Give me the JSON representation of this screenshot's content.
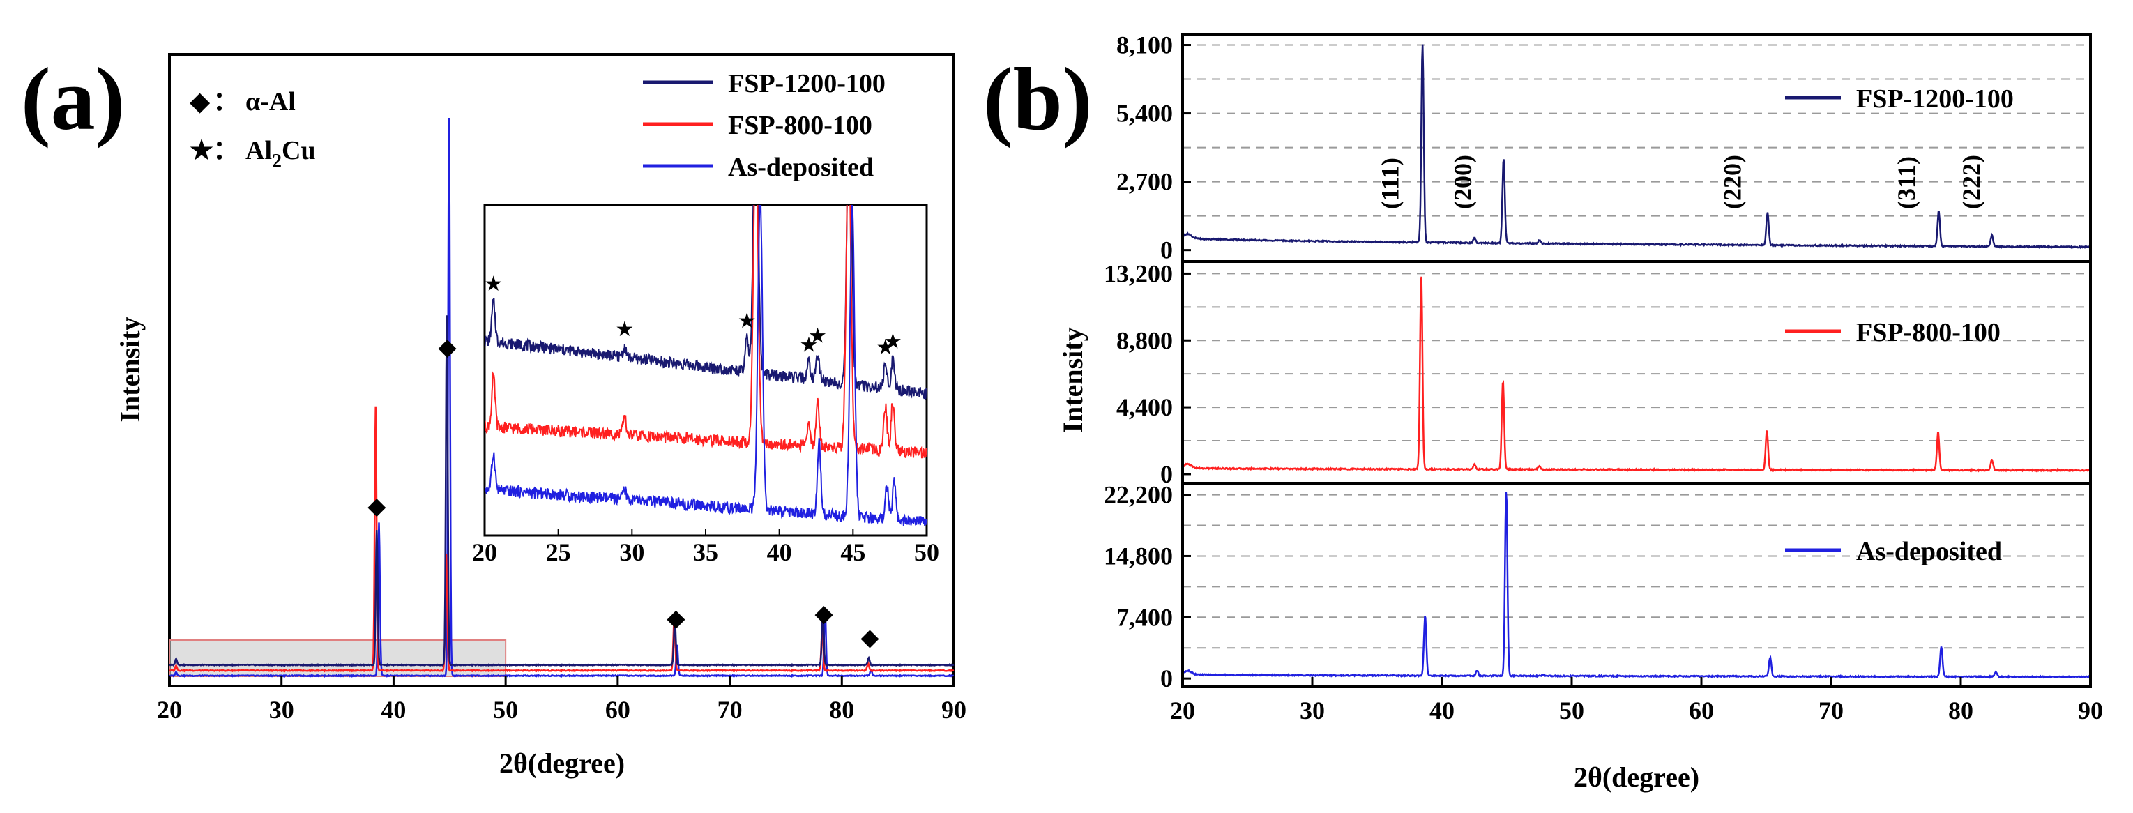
{
  "figure": {
    "panel_a_label": "(a)",
    "panel_b_label": "(b)"
  },
  "chart_data": [
    {
      "type": "line",
      "panel": "(a)",
      "title": "",
      "xlabel": "2θ(degree)",
      "ylabel": "Intensity",
      "xlim": [
        20,
        90
      ],
      "xticks": [
        "20",
        "30",
        "40",
        "50",
        "60",
        "70",
        "80",
        "90"
      ],
      "legend": {
        "placement": "top-right",
        "entries": [
          {
            "name": "FSP-1200-100",
            "color": "#191970"
          },
          {
            "name": "FSP-800-100",
            "color": "#ff2020"
          },
          {
            "name": "As-deposited",
            "color": "#2020e0"
          }
        ]
      },
      "phase_legend": {
        "placement": "top-left",
        "entries": [
          {
            "symbol": "◆",
            "separator": "：",
            "name": "α-Al"
          },
          {
            "symbol": "★",
            "separator": "：",
            "name": "Al",
            "subscript": "2",
            "suffix": "Cu"
          }
        ]
      },
      "series": [
        {
          "name": "FSP-1200-100",
          "color": "#191970",
          "offset": 0.0185,
          "peaks": [
            [
              20.6,
              0.01
            ],
            [
              38.5,
              0.22
            ],
            [
              44.75,
              0.57
            ],
            [
              65.1,
              0.075
            ],
            [
              78.3,
              0.09
            ],
            [
              82.4,
              0.012
            ]
          ]
        },
        {
          "name": "FSP-800-100",
          "color": "#ff2020",
          "offset": 0.0095,
          "peaks": [
            [
              20.6,
              0.008
            ],
            [
              38.4,
              0.43
            ],
            [
              44.7,
              0.19
            ],
            [
              65.05,
              0.085
            ],
            [
              78.25,
              0.07
            ],
            [
              82.35,
              0.012
            ]
          ]
        },
        {
          "name": "As-deposited",
          "color": "#2020e0",
          "offset": 0.001,
          "peaks": [
            [
              20.6,
              0.006
            ],
            [
              38.7,
              0.25
            ],
            [
              44.95,
              0.91
            ],
            [
              65.3,
              0.05
            ],
            [
              78.5,
              0.11
            ],
            [
              82.6,
              0.01
            ]
          ]
        }
      ],
      "diamond_markers_at_x": [
        38.5,
        44.8,
        65.2,
        78.4,
        82.5
      ],
      "inset": {
        "xlim": [
          20,
          50
        ],
        "xticks": [
          "20",
          "25",
          "30",
          "35",
          "40",
          "45",
          "50"
        ],
        "highlight_region_xlim": [
          20,
          50
        ],
        "star_markers": [
          {
            "x": 20.6,
            "series": "FSP-1200-100"
          },
          {
            "x": 29.5,
            "series": "FSP-1200-100"
          },
          {
            "x": 37.8,
            "series": "FSP-1200-100"
          },
          {
            "x": 42.0,
            "series": "FSP-1200-100"
          },
          {
            "x": 42.6,
            "series": "FSP-1200-100"
          },
          {
            "x": 47.2,
            "series": "FSP-1200-100"
          },
          {
            "x": 47.7,
            "series": "FSP-1200-100"
          }
        ],
        "series": [
          {
            "name": "FSP-1200-100",
            "color": "#191970",
            "base_start": 0.59,
            "base_end": 0.43,
            "peaks": [
              [
                20.6,
                0.12
              ],
              [
                29.5,
                0.03
              ],
              [
                37.8,
                0.1
              ],
              [
                38.4,
                0.9
              ],
              [
                42.0,
                0.05
              ],
              [
                42.6,
                0.08
              ],
              [
                44.75,
                0.9
              ],
              [
                47.2,
                0.07
              ],
              [
                47.7,
                0.09
              ]
            ]
          },
          {
            "name": "FSP-800-100",
            "color": "#ff2020",
            "base_start": 0.33,
            "base_end": 0.25,
            "peaks": [
              [
                20.6,
                0.15
              ],
              [
                29.5,
                0.05
              ],
              [
                38.4,
                0.95
              ],
              [
                42.0,
                0.06
              ],
              [
                42.6,
                0.14
              ],
              [
                44.7,
                0.95
              ],
              [
                47.2,
                0.13
              ],
              [
                47.7,
                0.15
              ]
            ]
          },
          {
            "name": "As-deposited",
            "color": "#2020e0",
            "base_start": 0.14,
            "base_end": 0.04,
            "peaks": [
              [
                20.6,
                0.11
              ],
              [
                29.5,
                0.03
              ],
              [
                38.7,
                0.95
              ],
              [
                42.7,
                0.22
              ],
              [
                44.95,
                0.95
              ],
              [
                47.3,
                0.1
              ],
              [
                47.8,
                0.12
              ]
            ]
          }
        ]
      }
    },
    {
      "type": "line",
      "panel": "(b)",
      "title": "",
      "xlabel": "2θ(degree)",
      "ylabel": "Intensity",
      "xlim": [
        20,
        90
      ],
      "xticks": [
        "20",
        "30",
        "40",
        "50",
        "60",
        "70",
        "80",
        "90"
      ],
      "grid": "dashed horizontal",
      "subplots": [
        {
          "name": "FSP-1200-100",
          "color": "#191970",
          "ylim": [
            -450,
            8500
          ],
          "yticks": [
            0,
            2700,
            5400,
            8100
          ],
          "ytick_labels": [
            "0",
            "2,700",
            "5,400",
            "8,100"
          ],
          "baseline": 500,
          "baseline_end": 120,
          "peaks": [
            [
              38.5,
              7850
            ],
            [
              42.5,
              200
            ],
            [
              44.75,
              3350
            ],
            [
              47.5,
              120
            ],
            [
              65.1,
              1300
            ],
            [
              78.3,
              1400
            ],
            [
              82.4,
              450
            ]
          ],
          "plane_labels": [
            {
              "text": "(111)",
              "x": 36.0
            },
            {
              "text": "(200)",
              "x": 41.6
            },
            {
              "text": "(220)",
              "x": 62.4
            },
            {
              "text": "(311)",
              "x": 75.8
            },
            {
              "text": "(222)",
              "x": 80.8
            }
          ]
        },
        {
          "name": "FSP-800-100",
          "color": "#ff2020",
          "ylim": [
            -600,
            14000
          ],
          "yticks": [
            0,
            4400,
            8800,
            13200
          ],
          "ytick_labels": [
            "0",
            "4,400",
            "8,800",
            "13,200"
          ],
          "baseline": 400,
          "baseline_end": 250,
          "peaks": [
            [
              38.4,
              12950
            ],
            [
              42.5,
              300
            ],
            [
              44.7,
              5850
            ],
            [
              47.5,
              200
            ],
            [
              65.05,
              2600
            ],
            [
              78.25,
              2500
            ],
            [
              82.4,
              700
            ]
          ]
        },
        {
          "name": "As-deposited",
          "color": "#2020e0",
          "ylim": [
            -1000,
            23600
          ],
          "yticks": [
            0,
            7400,
            14800,
            22200
          ],
          "ytick_labels": [
            "0",
            "7,400",
            "14,800",
            "22,200"
          ],
          "baseline": 500,
          "baseline_end": 200,
          "peaks": [
            [
              38.7,
              7300
            ],
            [
              42.7,
              600
            ],
            [
              44.95,
              22500
            ],
            [
              47.8,
              200
            ],
            [
              65.3,
              2300
            ],
            [
              78.5,
              3600
            ],
            [
              82.7,
              600
            ]
          ]
        }
      ]
    }
  ]
}
